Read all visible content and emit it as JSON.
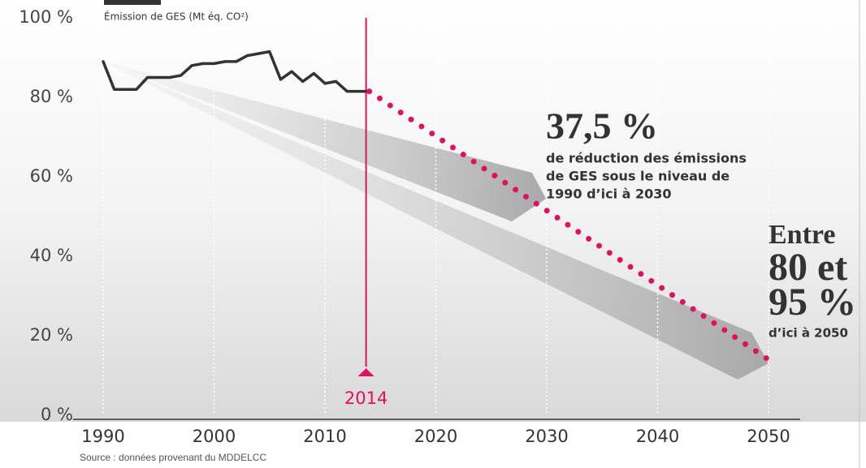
{
  "chart_data": {
    "type": "line",
    "x": [
      1990,
      1991,
      1992,
      1993,
      1994,
      1995,
      1996,
      1997,
      1998,
      1999,
      2000,
      2001,
      2002,
      2003,
      2004,
      2005,
      2006,
      2007,
      2008,
      2009,
      2010,
      2011,
      2012,
      2013,
      2014,
      2050
    ],
    "series": [
      {
        "name": "Émission de GES (Mt éq. CO²)",
        "color": "#333333",
        "style": "solid",
        "values": [
          89,
          82,
          82,
          82,
          85,
          85,
          85,
          85.5,
          88,
          88.5,
          88.5,
          89,
          89,
          90.5,
          91,
          91.5,
          84.5,
          86.5,
          84,
          86,
          83.5,
          84,
          81.5,
          81.5,
          81.5,
          null
        ]
      },
      {
        "color": "#e0115f",
        "style": "dotted",
        "values": [
          null,
          null,
          null,
          null,
          null,
          null,
          null,
          null,
          null,
          null,
          null,
          null,
          null,
          null,
          null,
          null,
          null,
          null,
          null,
          null,
          null,
          null,
          null,
          null,
          81.5,
          14
        ]
      }
    ],
    "xlim": [
      1990,
      2050
    ],
    "xticks": [
      1990,
      2000,
      2010,
      2020,
      2030,
      2040,
      2050
    ],
    "ylim": [
      0,
      100
    ],
    "yticks": [
      {
        "value": 0,
        "label": "0 %"
      },
      {
        "value": 20,
        "label": "20 %"
      },
      {
        "value": 40,
        "label": "40 %"
      },
      {
        "value": 60,
        "label": "60 %"
      },
      {
        "value": 80,
        "label": "80 %"
      },
      {
        "value": 100,
        "label": "100 %"
      }
    ],
    "grid": true,
    "marker": {
      "x": 2014,
      "label": "2014",
      "color": "#e0115f"
    },
    "annotations": {
      "target_2030": {
        "big": "37,5 %",
        "lines": [
          "de réduction des émissions",
          "de GES sous le niveau de",
          "1990 d’ici à 2030"
        ]
      },
      "target_2050": {
        "lines": [
          "Entre",
          "80 et",
          "95 %"
        ],
        "small": "d’ici à 2050"
      }
    },
    "source": "Source : données provenant du MDDELCC"
  }
}
